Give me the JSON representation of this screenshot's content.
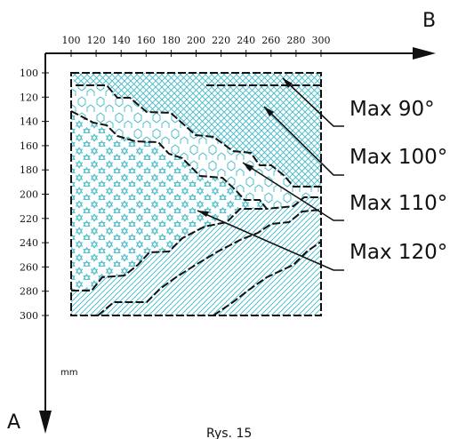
{
  "axes": {
    "horizontal_letter": "B",
    "vertical_letter": "A",
    "unit": "mm",
    "top_ticks": [
      "100",
      "120",
      "140",
      "160",
      "180",
      "200",
      "220",
      "240",
      "260",
      "280",
      "300"
    ],
    "left_ticks": [
      "100",
      "120",
      "140",
      "160",
      "180",
      "200",
      "220",
      "240",
      "260",
      "280",
      "300"
    ]
  },
  "zones": [
    {
      "label": "Max 90°",
      "pattern": "crosshatch"
    },
    {
      "label": "Max 100°",
      "pattern": "hexagons"
    },
    {
      "label": "Max 110°",
      "pattern": "stars"
    },
    {
      "label": "Max 120°",
      "pattern": "diagonal-lines"
    }
  ],
  "caption": "Rys. 15",
  "colors": {
    "accent": "#3fb9c6",
    "ink": "#111111"
  }
}
